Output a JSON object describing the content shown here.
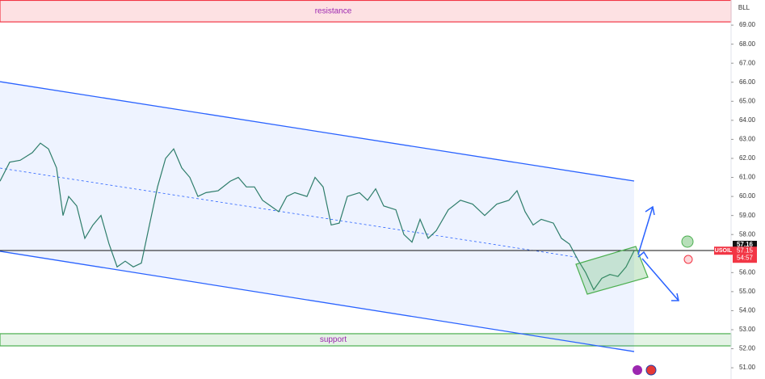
{
  "chart_data": {
    "type": "line",
    "symbol_code": "BLL",
    "x": [
      0,
      12,
      25,
      40,
      50,
      60,
      70,
      78,
      85,
      95,
      105,
      115,
      125,
      135,
      145,
      155,
      165,
      175,
      185,
      195,
      205,
      215,
      225,
      235,
      245,
      255,
      270,
      285,
      295,
      305,
      315,
      325,
      335,
      345,
      355,
      365,
      380,
      390,
      400,
      410,
      420,
      430,
      445,
      455,
      465,
      475,
      490,
      500,
      510,
      520,
      530,
      540,
      555,
      570,
      585,
      600,
      615,
      630,
      640,
      650,
      660,
      670,
      685,
      695,
      705,
      715,
      725,
      735,
      745,
      755,
      765,
      775,
      785
    ],
    "series": [
      {
        "name": "USOIL",
        "color": "#2e7d6b",
        "values": [
          60.8,
          61.8,
          61.9,
          62.3,
          62.8,
          62.5,
          61.5,
          59.0,
          60.0,
          59.5,
          57.8,
          58.5,
          59.0,
          57.5,
          56.3,
          56.6,
          56.3,
          56.5,
          58.5,
          60.5,
          62.0,
          62.5,
          61.5,
          61.0,
          60.0,
          60.2,
          60.3,
          60.8,
          61.0,
          60.5,
          60.5,
          59.8,
          59.5,
          59.2,
          60.0,
          60.2,
          60.0,
          61.0,
          60.5,
          58.5,
          58.6,
          60.0,
          60.2,
          59.8,
          60.4,
          59.5,
          59.3,
          58.0,
          57.6,
          58.8,
          57.8,
          58.2,
          59.3,
          59.8,
          59.6,
          59.0,
          59.6,
          59.8,
          60.3,
          59.2,
          58.5,
          58.8,
          58.6,
          57.8,
          57.5,
          56.7,
          56.0,
          55.1,
          55.7,
          55.9,
          55.8,
          56.3,
          57.15
        ]
      }
    ],
    "xlim": [
      0,
      905
    ],
    "ylim": [
      50.41,
      70.32
    ],
    "yticks": [
      {
        "value": 51,
        "label": "51.00"
      },
      {
        "value": 52,
        "label": "52.00"
      },
      {
        "value": 53,
        "label": "53.00"
      },
      {
        "value": 54,
        "label": "54.00"
      },
      {
        "value": 55,
        "label": "55.00"
      },
      {
        "value": 56,
        "label": "56.00"
      },
      {
        "value": 57,
        "label": "57.00"
      },
      {
        "value": 58,
        "label": "58.00"
      },
      {
        "value": 59,
        "label": "59.00"
      },
      {
        "value": 60,
        "label": "60.00"
      },
      {
        "value": 61,
        "label": "61.00"
      },
      {
        "value": 62,
        "label": "62.00"
      },
      {
        "value": 63,
        "label": "63.00"
      },
      {
        "value": 64,
        "label": "64.00"
      },
      {
        "value": 65,
        "label": "65.00"
      },
      {
        "value": 66,
        "label": "66.00"
      },
      {
        "value": 67,
        "label": "67.00"
      },
      {
        "value": 68,
        "label": "68.00"
      },
      {
        "value": 69,
        "label": "69.00"
      }
    ],
    "zones": [
      {
        "label": "resistance",
        "low": 69.17,
        "high": 70.3,
        "color": "#f23645"
      },
      {
        "label": "support",
        "low": 52.15,
        "high": 52.79,
        "color": "#4caf50"
      }
    ],
    "channel": {
      "upper": [
        66.03,
        60.81
      ],
      "lower": [
        57.12,
        51.85
      ],
      "mid": [
        61.49,
        56.8
      ],
      "x": [
        0,
        785
      ],
      "mid_x": [
        0,
        715
      ],
      "color": "#2962ff"
    },
    "price_line": {
      "value": 57.16,
      "label": "57.16"
    },
    "last_price": {
      "value": 57.15,
      "label": "57.15",
      "countdown": "54:57"
    }
  }
}
